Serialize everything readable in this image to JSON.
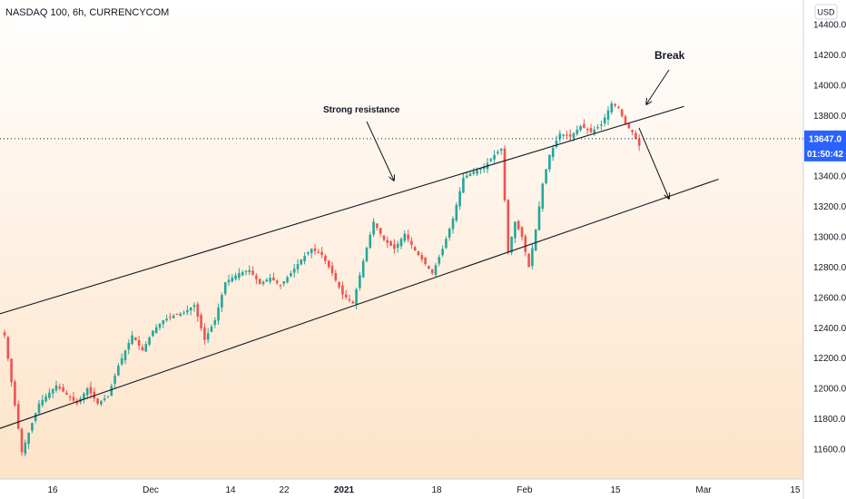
{
  "chart_data": {
    "type": "candlestick",
    "title": "NASDAQ 100, 6h, CURRENCYCOM",
    "currency": "USD",
    "x_tick_labels": [
      "16",
      "Dec",
      "14",
      "22",
      "2021",
      "18",
      "Feb",
      "15",
      "Mar",
      "15"
    ],
    "x_tick_bold": [
      false,
      false,
      false,
      false,
      true,
      false,
      false,
      false,
      false,
      false
    ],
    "y_tick_labels": [
      "14400.0",
      "14200.0",
      "14000.0",
      "13800.0",
      "13400.0",
      "13200.0",
      "13000.0",
      "12800.0",
      "12600.0",
      "12400.0",
      "12200.0",
      "12000.0",
      "11800.0",
      "11600.0"
    ],
    "ylim": [
      11500,
      14520
    ],
    "last_price_label": "13647.0",
    "countdown_label": "01:50:42",
    "last_price": 13647,
    "annotations": {
      "strong_resistance": "Strong resistance",
      "break": "Break"
    },
    "colors": {
      "up": "#26a69a",
      "down": "#ef5350",
      "accent": "#2962ff",
      "background_top": "#ffffff",
      "background_bottom": "#fde3c8"
    },
    "close_path": [
      [
        0,
        12350
      ],
      [
        5,
        11580
      ],
      [
        10,
        11900
      ],
      [
        15,
        12020
      ],
      [
        18,
        11960
      ],
      [
        21,
        11900
      ],
      [
        24,
        12000
      ],
      [
        27,
        11900
      ],
      [
        30,
        11950
      ],
      [
        33,
        12150
      ],
      [
        37,
        12350
      ],
      [
        40,
        12250
      ],
      [
        43,
        12380
      ],
      [
        46,
        12450
      ],
      [
        49,
        12480
      ],
      [
        52,
        12500
      ],
      [
        55,
        12550
      ],
      [
        58,
        12320
      ],
      [
        61,
        12450
      ],
      [
        64,
        12700
      ],
      [
        68,
        12760
      ],
      [
        71,
        12780
      ],
      [
        74,
        12690
      ],
      [
        77,
        12730
      ],
      [
        80,
        12680
      ],
      [
        83,
        12760
      ],
      [
        86,
        12850
      ],
      [
        89,
        12920
      ],
      [
        92,
        12880
      ],
      [
        95,
        12760
      ],
      [
        98,
        12620
      ],
      [
        101,
        12560
      ],
      [
        104,
        12840
      ],
      [
        107,
        13100
      ],
      [
        110,
        12980
      ],
      [
        113,
        12920
      ],
      [
        116,
        13020
      ],
      [
        119,
        12910
      ],
      [
        122,
        12820
      ],
      [
        124,
        12760
      ],
      [
        127,
        12920
      ],
      [
        130,
        13120
      ],
      [
        133,
        13390
      ],
      [
        136,
        13430
      ],
      [
        139,
        13460
      ],
      [
        142,
        13540
      ],
      [
        144,
        13580
      ],
      [
        146,
        12900
      ],
      [
        148,
        13100
      ],
      [
        150,
        13000
      ],
      [
        152,
        12800
      ],
      [
        154,
        13050
      ],
      [
        156,
        13350
      ],
      [
        158,
        13540
      ],
      [
        161,
        13680
      ],
      [
        164,
        13660
      ],
      [
        167,
        13730
      ],
      [
        170,
        13690
      ],
      [
        173,
        13740
      ],
      [
        176,
        13880
      ],
      [
        178,
        13850
      ],
      [
        180,
        13740
      ],
      [
        182,
        13690
      ],
      [
        184,
        13600
      ]
    ],
    "trendlines": [
      {
        "name": "upper-resistance",
        "points": [
          [
            -6,
            12460
          ],
          [
            197,
            13860
          ]
        ]
      },
      {
        "name": "upper-channel-support",
        "points": [
          [
            -6,
            11700
          ],
          [
            207,
            13380
          ]
        ]
      }
    ]
  }
}
